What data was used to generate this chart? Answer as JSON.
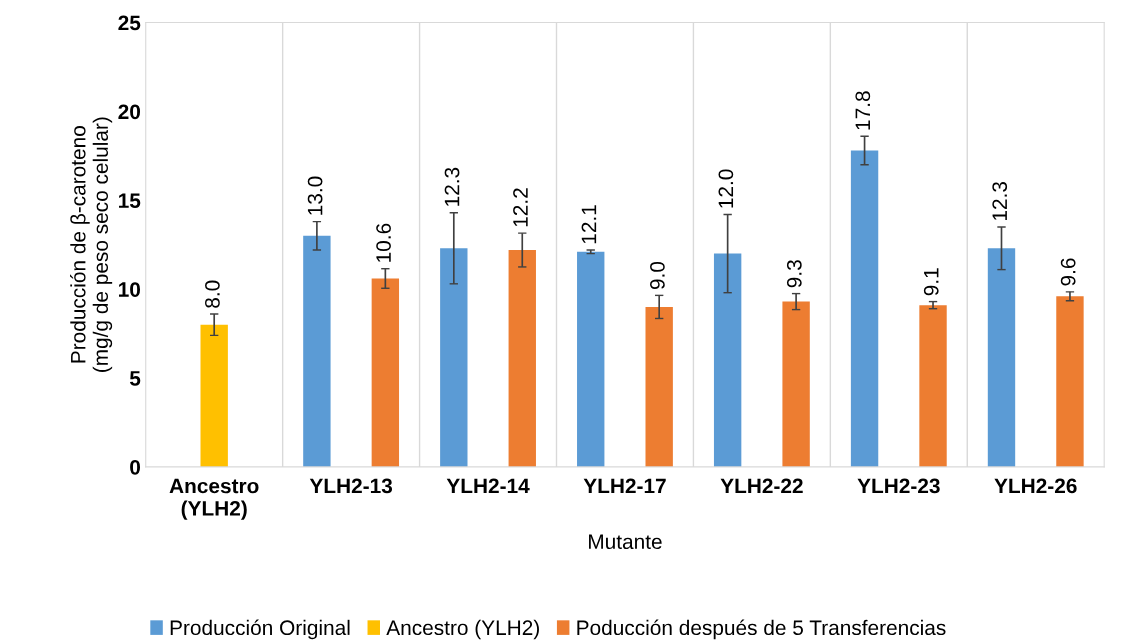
{
  "chart_data": {
    "type": "bar",
    "xlabel": "Mutante",
    "ylabel": "Producción de β-caroteno\n(mg/g de peso seco celular)",
    "categories": [
      "Ancestro\n(YLH2)",
      "YLH2-13",
      "YLH2-14",
      "YLH2-17",
      "YLH2-22",
      "YLH2-23",
      "YLH2-26"
    ],
    "series": [
      {
        "name": "Producción Original",
        "color": "#5b9bd5",
        "values": [
          null,
          13.0,
          12.3,
          12.1,
          12.0,
          17.8,
          12.3
        ],
        "value_labels": [
          null,
          "13.0",
          "12.3",
          "12.1",
          "12.0",
          "17.8",
          "12.3"
        ],
        "errors": [
          null,
          0.8,
          2.0,
          0.1,
          2.2,
          0.8,
          1.2
        ]
      },
      {
        "name": "Ancestro (YLH2)",
        "color": "#ffc000",
        "values": [
          8.0,
          null,
          null,
          null,
          null,
          null,
          null
        ],
        "value_labels": [
          "8.0",
          null,
          null,
          null,
          null,
          null,
          null
        ],
        "errors": [
          0.6,
          null,
          null,
          null,
          null,
          null,
          null
        ]
      },
      {
        "name": "Poducción después de 5 Transferencias",
        "color": "#ed7d31",
        "values": [
          null,
          10.6,
          12.2,
          9.0,
          9.3,
          9.1,
          9.6
        ],
        "value_labels": [
          null,
          "10.6",
          "12.2",
          "9.0",
          "9.3",
          "9.1",
          "9.6"
        ],
        "errors": [
          null,
          0.55,
          0.95,
          0.65,
          0.45,
          0.2,
          0.25
        ]
      }
    ],
    "ylim": [
      0,
      25
    ],
    "yticks": [
      0,
      5,
      10,
      15,
      20,
      25
    ],
    "grid": "x",
    "legend": "bottom"
  }
}
